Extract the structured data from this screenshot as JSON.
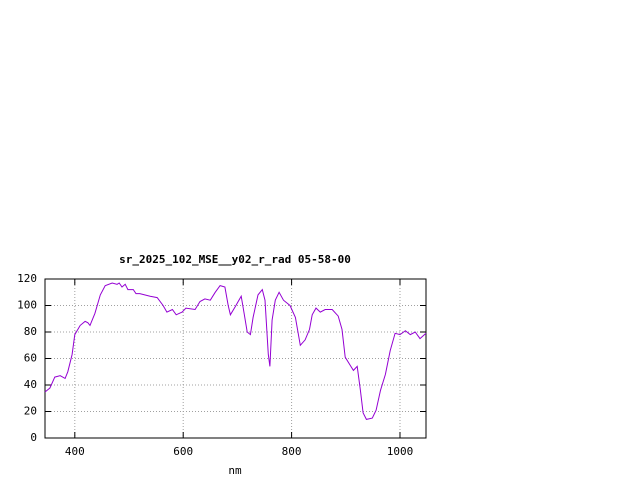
{
  "chart_data": {
    "type": "line",
    "title": "sr_2025_102_MSE__y02_r_rad 05-58-00",
    "x_label": "nm",
    "x": [
      345,
      354,
      363,
      373,
      382,
      387,
      395,
      400,
      410,
      419,
      424,
      428,
      437,
      447,
      456,
      469,
      478,
      482,
      487,
      493,
      498,
      508,
      513,
      520,
      539,
      552,
      563,
      570,
      580,
      587,
      598,
      605,
      622,
      631,
      640,
      650,
      659,
      668,
      677,
      683,
      687,
      696,
      707,
      712,
      718,
      724,
      729,
      738,
      746,
      751,
      757,
      760,
      764,
      770,
      777,
      785,
      797,
      807,
      816,
      825,
      833,
      838,
      845,
      853,
      862,
      875,
      886,
      893,
      899,
      908,
      914,
      921,
      927,
      932,
      938,
      949,
      956,
      964,
      973,
      982,
      991,
      1000,
      1010,
      1019,
      1028,
      1037,
      1048
    ],
    "series": [
      {
        "name": "sr_2025_102_MSE__y02_r_rad",
        "color": "#9400d3",
        "values": [
          34.7,
          37.7,
          46,
          47,
          45,
          50,
          63,
          78,
          85,
          88,
          87,
          85,
          94,
          108,
          115,
          117,
          116,
          117,
          114,
          116,
          112,
          112,
          109,
          109,
          107,
          106,
          100,
          95,
          97,
          93,
          95,
          98,
          97,
          103,
          105,
          104,
          110,
          115,
          114,
          100,
          93,
          99,
          107,
          95,
          80,
          78,
          91,
          108,
          112,
          104,
          63,
          54,
          89,
          104,
          110,
          104,
          100,
          91,
          70,
          74,
          82,
          93,
          98,
          95,
          97,
          97,
          92,
          82,
          61,
          55,
          51,
          54,
          36,
          19,
          14,
          15,
          21,
          36,
          48,
          66,
          79,
          78,
          81,
          78,
          80,
          75,
          79
        ]
      }
    ],
    "xlim": [
      345,
      1048
    ],
    "xticks": [
      400,
      600,
      800,
      1000
    ],
    "ylim": [
      0,
      120
    ],
    "yticks": [
      0,
      20,
      40,
      60,
      80,
      100,
      120
    ],
    "grid": true
  }
}
